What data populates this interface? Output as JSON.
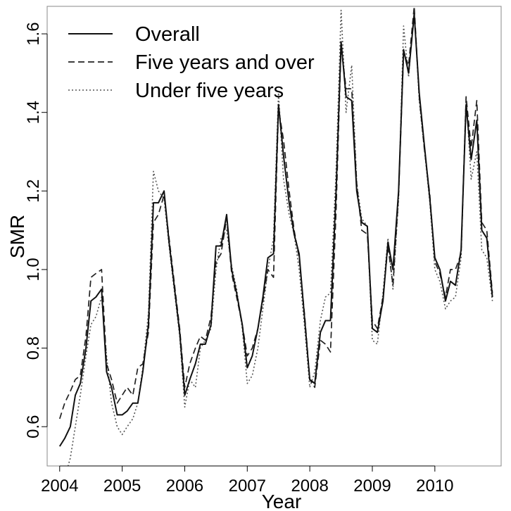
{
  "chart_data": {
    "type": "line",
    "xlabel": "Year",
    "ylabel": "SMR",
    "xlim": [
      2003.8,
      2011.06
    ],
    "ylim": [
      0.5,
      1.67
    ],
    "x_ticks": [
      2004,
      2005,
      2006,
      2007,
      2008,
      2009,
      2010
    ],
    "y_ticks": [
      0.6,
      0.8,
      1.0,
      1.2,
      1.4,
      1.6
    ],
    "y_tick_labels": [
      "0.6",
      "0.8",
      "1.0",
      "1.2",
      "1.4",
      "1.6"
    ],
    "legend_position": "top-left",
    "grid": false,
    "series": [
      {
        "name": "Overall",
        "style": "solid",
        "points": [
          [
            2004.0,
            0.55
          ],
          [
            2004.08,
            0.57
          ],
          [
            2004.17,
            0.6
          ],
          [
            2004.25,
            0.68
          ],
          [
            2004.33,
            0.71
          ],
          [
            2004.42,
            0.8
          ],
          [
            2004.5,
            0.92
          ],
          [
            2004.58,
            0.93
          ],
          [
            2004.67,
            0.95
          ],
          [
            2004.75,
            0.74
          ],
          [
            2004.83,
            0.7
          ],
          [
            2004.92,
            0.63
          ],
          [
            2005.0,
            0.63
          ],
          [
            2005.08,
            0.64
          ],
          [
            2005.17,
            0.66
          ],
          [
            2005.25,
            0.66
          ],
          [
            2005.33,
            0.74
          ],
          [
            2005.42,
            0.86
          ],
          [
            2005.5,
            1.17
          ],
          [
            2005.58,
            1.17
          ],
          [
            2005.67,
            1.2
          ],
          [
            2005.75,
            1.07
          ],
          [
            2005.83,
            0.96
          ],
          [
            2005.92,
            0.84
          ],
          [
            2006.0,
            0.68
          ],
          [
            2006.08,
            0.72
          ],
          [
            2006.17,
            0.76
          ],
          [
            2006.25,
            0.81
          ],
          [
            2006.33,
            0.81
          ],
          [
            2006.42,
            0.86
          ],
          [
            2006.5,
            1.06
          ],
          [
            2006.58,
            1.06
          ],
          [
            2006.67,
            1.14
          ],
          [
            2006.75,
            1.0
          ],
          [
            2006.83,
            0.94
          ],
          [
            2006.92,
            0.86
          ],
          [
            2007.0,
            0.75
          ],
          [
            2007.08,
            0.78
          ],
          [
            2007.17,
            0.85
          ],
          [
            2007.25,
            0.93
          ],
          [
            2007.33,
            1.03
          ],
          [
            2007.42,
            1.04
          ],
          [
            2007.5,
            1.42
          ],
          [
            2007.58,
            1.29
          ],
          [
            2007.67,
            1.17
          ],
          [
            2007.75,
            1.09
          ],
          [
            2007.83,
            1.04
          ],
          [
            2007.92,
            0.87
          ],
          [
            2008.0,
            0.72
          ],
          [
            2008.08,
            0.71
          ],
          [
            2008.17,
            0.84
          ],
          [
            2008.25,
            0.87
          ],
          [
            2008.33,
            0.87
          ],
          [
            2008.42,
            1.2
          ],
          [
            2008.5,
            1.58
          ],
          [
            2008.58,
            1.44
          ],
          [
            2008.67,
            1.43
          ],
          [
            2008.75,
            1.2
          ],
          [
            2008.83,
            1.12
          ],
          [
            2008.92,
            1.11
          ],
          [
            2009.0,
            0.85
          ],
          [
            2009.08,
            0.84
          ],
          [
            2009.17,
            0.92
          ],
          [
            2009.25,
            1.07
          ],
          [
            2009.33,
            1.0
          ],
          [
            2009.42,
            1.2
          ],
          [
            2009.5,
            1.56
          ],
          [
            2009.58,
            1.5
          ],
          [
            2009.67,
            1.65
          ],
          [
            2009.75,
            1.45
          ],
          [
            2009.83,
            1.32
          ],
          [
            2009.92,
            1.18
          ],
          [
            2010.0,
            1.03
          ],
          [
            2010.08,
            1.0
          ],
          [
            2010.17,
            0.92
          ],
          [
            2010.25,
            0.97
          ],
          [
            2010.33,
            0.96
          ],
          [
            2010.42,
            1.05
          ],
          [
            2010.5,
            1.42
          ],
          [
            2010.58,
            1.28
          ],
          [
            2010.67,
            1.38
          ],
          [
            2010.75,
            1.1
          ],
          [
            2010.83,
            1.08
          ],
          [
            2010.92,
            0.93
          ]
        ]
      },
      {
        "name": "Five years and over",
        "style": "dashed",
        "points": [
          [
            2004.0,
            0.62
          ],
          [
            2004.08,
            0.66
          ],
          [
            2004.17,
            0.69
          ],
          [
            2004.25,
            0.72
          ],
          [
            2004.33,
            0.73
          ],
          [
            2004.42,
            0.83
          ],
          [
            2004.5,
            0.98
          ],
          [
            2004.58,
            0.99
          ],
          [
            2004.67,
            1.0
          ],
          [
            2004.75,
            0.76
          ],
          [
            2004.83,
            0.72
          ],
          [
            2004.92,
            0.66
          ],
          [
            2005.0,
            0.68
          ],
          [
            2005.08,
            0.7
          ],
          [
            2005.17,
            0.68
          ],
          [
            2005.25,
            0.75
          ],
          [
            2005.33,
            0.76
          ],
          [
            2005.42,
            0.84
          ],
          [
            2005.5,
            1.12
          ],
          [
            2005.58,
            1.14
          ],
          [
            2005.67,
            1.19
          ],
          [
            2005.75,
            1.08
          ],
          [
            2005.83,
            0.97
          ],
          [
            2005.92,
            0.85
          ],
          [
            2006.0,
            0.7
          ],
          [
            2006.08,
            0.76
          ],
          [
            2006.17,
            0.8
          ],
          [
            2006.25,
            0.83
          ],
          [
            2006.33,
            0.82
          ],
          [
            2006.42,
            0.88
          ],
          [
            2006.5,
            1.02
          ],
          [
            2006.58,
            1.04
          ],
          [
            2006.67,
            1.13
          ],
          [
            2006.75,
            0.99
          ],
          [
            2006.83,
            0.93
          ],
          [
            2006.92,
            0.86
          ],
          [
            2007.0,
            0.78
          ],
          [
            2007.08,
            0.8
          ],
          [
            2007.17,
            0.85
          ],
          [
            2007.25,
            0.92
          ],
          [
            2007.33,
            1.0
          ],
          [
            2007.42,
            0.98
          ],
          [
            2007.5,
            1.41
          ],
          [
            2007.58,
            1.33
          ],
          [
            2007.67,
            1.2
          ],
          [
            2007.75,
            1.1
          ],
          [
            2007.83,
            1.03
          ],
          [
            2007.92,
            0.88
          ],
          [
            2008.0,
            0.72
          ],
          [
            2008.08,
            0.7
          ],
          [
            2008.17,
            0.82
          ],
          [
            2008.25,
            0.81
          ],
          [
            2008.33,
            0.79
          ],
          [
            2008.42,
            1.15
          ],
          [
            2008.5,
            1.57
          ],
          [
            2008.58,
            1.46
          ],
          [
            2008.67,
            1.46
          ],
          [
            2008.75,
            1.22
          ],
          [
            2008.83,
            1.1
          ],
          [
            2008.92,
            1.09
          ],
          [
            2009.0,
            0.87
          ],
          [
            2009.08,
            0.85
          ],
          [
            2009.17,
            0.93
          ],
          [
            2009.25,
            1.06
          ],
          [
            2009.33,
            0.96
          ],
          [
            2009.42,
            1.19
          ],
          [
            2009.5,
            1.55
          ],
          [
            2009.58,
            1.52
          ],
          [
            2009.67,
            1.67
          ],
          [
            2009.75,
            1.44
          ],
          [
            2009.83,
            1.31
          ],
          [
            2009.92,
            1.19
          ],
          [
            2010.0,
            1.02
          ],
          [
            2010.08,
            0.99
          ],
          [
            2010.17,
            0.93
          ],
          [
            2010.25,
            1.0
          ],
          [
            2010.33,
            1.0
          ],
          [
            2010.42,
            1.04
          ],
          [
            2010.5,
            1.44
          ],
          [
            2010.58,
            1.31
          ],
          [
            2010.67,
            1.43
          ],
          [
            2010.75,
            1.12
          ],
          [
            2010.83,
            1.1
          ],
          [
            2010.92,
            0.94
          ]
        ]
      },
      {
        "name": "Under five years",
        "style": "dotted",
        "points": [
          [
            2004.0,
            0.44
          ],
          [
            2004.08,
            0.47
          ],
          [
            2004.17,
            0.52
          ],
          [
            2004.25,
            0.6
          ],
          [
            2004.33,
            0.68
          ],
          [
            2004.42,
            0.78
          ],
          [
            2004.5,
            0.86
          ],
          [
            2004.58,
            0.88
          ],
          [
            2004.67,
            0.93
          ],
          [
            2004.75,
            0.78
          ],
          [
            2004.83,
            0.66
          ],
          [
            2004.92,
            0.6
          ],
          [
            2005.0,
            0.58
          ],
          [
            2005.08,
            0.6
          ],
          [
            2005.17,
            0.62
          ],
          [
            2005.25,
            0.66
          ],
          [
            2005.33,
            0.75
          ],
          [
            2005.42,
            0.89
          ],
          [
            2005.5,
            1.25
          ],
          [
            2005.58,
            1.2
          ],
          [
            2005.67,
            1.18
          ],
          [
            2005.75,
            1.06
          ],
          [
            2005.83,
            0.95
          ],
          [
            2005.92,
            0.83
          ],
          [
            2006.0,
            0.65
          ],
          [
            2006.08,
            0.72
          ],
          [
            2006.17,
            0.7
          ],
          [
            2006.25,
            0.8
          ],
          [
            2006.33,
            0.82
          ],
          [
            2006.42,
            0.85
          ],
          [
            2006.5,
            1.0
          ],
          [
            2006.58,
            1.08
          ],
          [
            2006.67,
            1.1
          ],
          [
            2006.75,
            1.01
          ],
          [
            2006.83,
            0.95
          ],
          [
            2006.92,
            0.85
          ],
          [
            2007.0,
            0.71
          ],
          [
            2007.08,
            0.73
          ],
          [
            2007.17,
            0.8
          ],
          [
            2007.25,
            0.9
          ],
          [
            2007.33,
            1.0
          ],
          [
            2007.42,
            1.08
          ],
          [
            2007.5,
            1.45
          ],
          [
            2007.58,
            1.23
          ],
          [
            2007.67,
            1.14
          ],
          [
            2007.75,
            1.09
          ],
          [
            2007.83,
            1.0
          ],
          [
            2007.92,
            0.85
          ],
          [
            2008.0,
            0.7
          ],
          [
            2008.08,
            0.74
          ],
          [
            2008.17,
            0.87
          ],
          [
            2008.25,
            0.93
          ],
          [
            2008.33,
            0.94
          ],
          [
            2008.42,
            1.25
          ],
          [
            2008.5,
            1.66
          ],
          [
            2008.58,
            1.4
          ],
          [
            2008.67,
            1.52
          ],
          [
            2008.75,
            1.22
          ],
          [
            2008.83,
            1.13
          ],
          [
            2008.92,
            1.11
          ],
          [
            2009.0,
            0.82
          ],
          [
            2009.08,
            0.81
          ],
          [
            2009.17,
            0.94
          ],
          [
            2009.25,
            1.08
          ],
          [
            2009.33,
            0.95
          ],
          [
            2009.42,
            1.18
          ],
          [
            2009.5,
            1.62
          ],
          [
            2009.58,
            1.49
          ],
          [
            2009.67,
            1.66
          ],
          [
            2009.75,
            1.43
          ],
          [
            2009.83,
            1.31
          ],
          [
            2009.92,
            1.17
          ],
          [
            2010.0,
            1.0
          ],
          [
            2010.08,
            0.97
          ],
          [
            2010.17,
            0.9
          ],
          [
            2010.25,
            0.92
          ],
          [
            2010.33,
            0.93
          ],
          [
            2010.42,
            1.03
          ],
          [
            2010.5,
            1.44
          ],
          [
            2010.58,
            1.23
          ],
          [
            2010.67,
            1.3
          ],
          [
            2010.75,
            1.05
          ],
          [
            2010.83,
            1.03
          ],
          [
            2010.92,
            0.92
          ]
        ]
      }
    ]
  }
}
